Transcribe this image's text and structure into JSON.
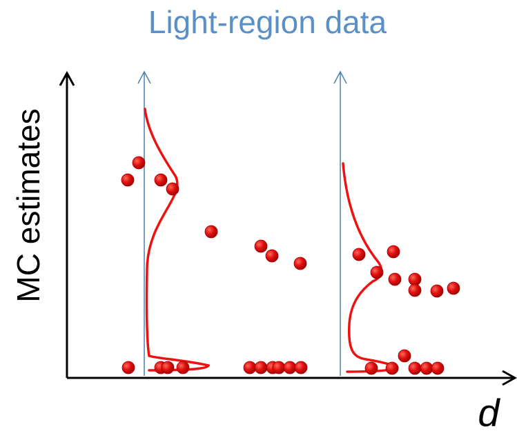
{
  "title": "Light-region data",
  "axes": {
    "ylabel": "MC estimates",
    "xlabel": "d"
  },
  "colors": {
    "title": "#5b8fc7",
    "dots": "#e01010",
    "curves": "#ee1111",
    "arrows": "#4a7fb0",
    "axes": "#000000"
  },
  "diagram": {
    "description_free": true,
    "dot_groups": 2,
    "distribution_curves": 2
  }
}
